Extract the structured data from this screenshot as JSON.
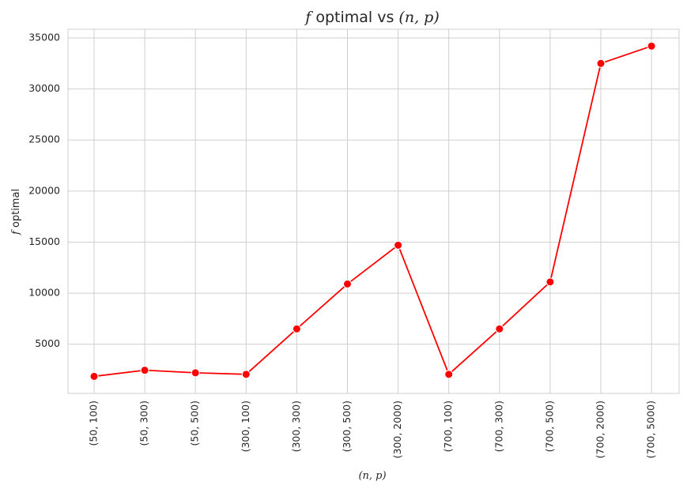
{
  "colors": {
    "series": "#ff0000",
    "grid": "#cfcfcf",
    "text": "#262626",
    "background": "#ffffff"
  },
  "chart_data": {
    "type": "line",
    "title": {
      "var": "f",
      "mid": " optimal vs ",
      "pair": "(n, p)"
    },
    "xlabel": "(n, p)",
    "ylabel": {
      "var": "f",
      "rest": " optimal"
    },
    "categories": [
      "(50, 100)",
      "(50, 300)",
      "(50, 500)",
      "(300, 100)",
      "(300, 300)",
      "(300, 500)",
      "(300, 2000)",
      "(700, 100)",
      "(700, 300)",
      "(700, 500)",
      "(700, 2000)",
      "(700, 5000)"
    ],
    "values": [
      1850,
      2450,
      2200,
      2050,
      6500,
      10900,
      14700,
      2050,
      6500,
      11100,
      32500,
      34200
    ],
    "yticks": [
      5000,
      10000,
      15000,
      20000,
      25000,
      30000,
      35000
    ],
    "ylim": [
      180,
      35850
    ],
    "grid": true,
    "marker": "circle"
  }
}
